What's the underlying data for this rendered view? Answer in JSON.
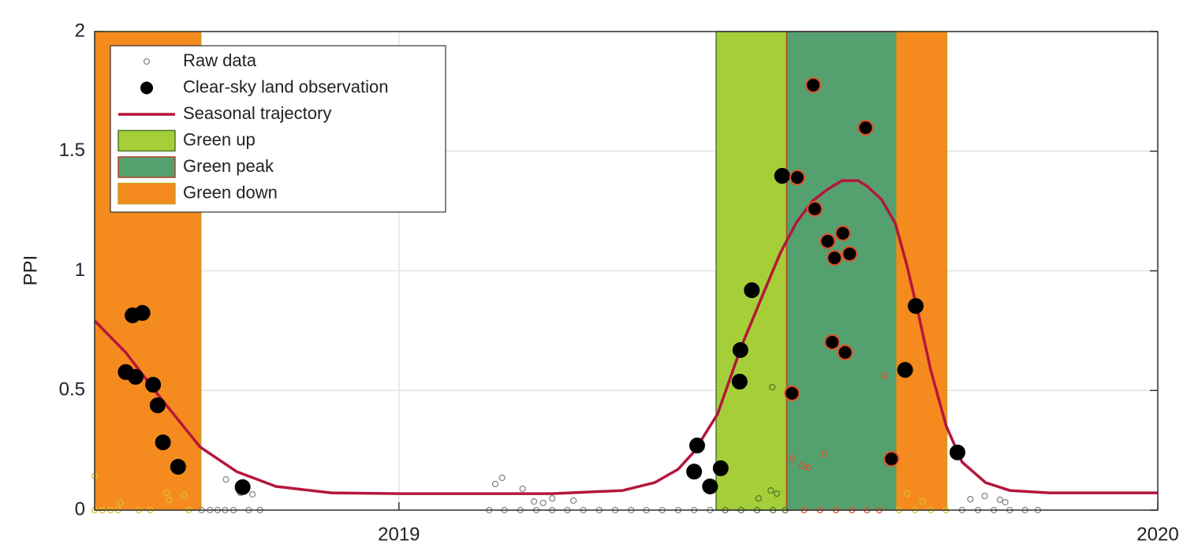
{
  "chart_data": {
    "type": "scatter",
    "ylabel": "PPI",
    "xlim": [
      2018.599,
      2020
    ],
    "xticks": [
      2019,
      2020
    ],
    "ylim": [
      0,
      2
    ],
    "yticks": [
      0,
      0.5,
      1,
      1.5,
      2
    ],
    "grid": true,
    "legend": "upper left",
    "phases": [
      {
        "name": "Green up",
        "color": "#a6ce39",
        "spans": [
          [
            2019.418,
            2019.511
          ]
        ]
      },
      {
        "name": "Green peak",
        "color": "#55a06f",
        "spans": [
          [
            2019.511,
            2019.656
          ]
        ]
      },
      {
        "name": "Green down",
        "color": "#f58a1f",
        "spans": [
          [
            2018.599,
            2018.739
          ],
          [
            2019.656,
            2019.722
          ]
        ]
      }
    ],
    "series": [
      {
        "name": "Raw data",
        "type": "scatter",
        "marker": "open",
        "color": "#888888",
        "x": [
          2018.599,
          2018.609,
          2018.62,
          2018.63,
          2018.657,
          2018.672,
          2018.723,
          2018.74,
          2018.751,
          2018.761,
          2018.771,
          2018.782,
          2018.802,
          2018.817,
          2019.119,
          2019.139,
          2019.16,
          2019.181,
          2019.202,
          2019.222,
          2019.243,
          2019.264,
          2019.285,
          2019.306,
          2019.326,
          2019.347,
          2019.368,
          2019.389,
          2019.41,
          2019.43,
          2019.451,
          2019.472,
          2019.493,
          2019.509,
          2019.534,
          2019.555,
          2019.576,
          2019.597,
          2019.617,
          2019.633,
          2019.659,
          2019.68,
          2019.701,
          2019.721,
          2019.742,
          2019.763,
          2019.784,
          2019.805,
          2019.825,
          2019.842,
          2018.599,
          2018.633,
          2018.694,
          2018.697,
          2018.717,
          2018.772,
          2018.791,
          2018.807,
          2019.127,
          2019.136,
          2019.163,
          2019.178,
          2019.19,
          2019.202,
          2019.23,
          2019.474,
          2019.492,
          2019.49,
          2019.498,
          2019.519,
          2019.531,
          2019.54,
          2019.561,
          2019.64,
          2019.67,
          2019.69,
          2019.753,
          2019.772,
          2019.792,
          2019.799
        ],
        "values": [
          0,
          0,
          0,
          0,
          0,
          0,
          0,
          0,
          0,
          0,
          0,
          0,
          0,
          0,
          0,
          0,
          0,
          0,
          0,
          0,
          0,
          0,
          0,
          0,
          0,
          0,
          0,
          0,
          0,
          0,
          0,
          0,
          0,
          0,
          0,
          0,
          0,
          0,
          0,
          0,
          0,
          0,
          0,
          0,
          0,
          0,
          0,
          0,
          0,
          0,
          0.142,
          0.03,
          0.072,
          0.043,
          0.063,
          0.128,
          0.072,
          0.066,
          0.109,
          0.135,
          0.089,
          0.036,
          0.03,
          0.049,
          0.04,
          0.049,
          0.514,
          0.082,
          0.069,
          0.217,
          0.185,
          0.178,
          0.234,
          0.563,
          0.069,
          0.036,
          0.046,
          0.059,
          0.043,
          0.033
        ]
      },
      {
        "name": "Clear-sky land observation",
        "type": "scatter",
        "marker": "filled",
        "color": "#000000",
        "x": [
          2018.64,
          2018.649,
          2018.662,
          2018.653,
          2018.676,
          2018.682,
          2018.689,
          2018.709,
          2018.794,
          2019.389,
          2019.393,
          2019.41,
          2019.424,
          2019.449,
          2019.45,
          2019.465,
          2019.505,
          2019.518,
          2019.525,
          2019.546,
          2019.548,
          2019.565,
          2019.585,
          2019.574,
          2019.594,
          2019.571,
          2019.588,
          2019.615,
          2019.649,
          2019.667,
          2019.681,
          2019.736
        ],
        "values": [
          0.577,
          0.814,
          0.824,
          0.557,
          0.524,
          0.438,
          0.283,
          0.181,
          0.096,
          0.161,
          0.27,
          0.099,
          0.175,
          0.537,
          0.669,
          0.919,
          1.397,
          0.488,
          1.39,
          1.776,
          1.259,
          1.124,
          1.157,
          1.054,
          1.071,
          0.702,
          0.659,
          1.598,
          0.214,
          0.586,
          0.853,
          0.241
        ]
      },
      {
        "name": "Seasonal trajectory",
        "type": "line",
        "color": "#b5163b",
        "x": [
          2018.599,
          2018.64,
          2018.682,
          2018.738,
          2018.786,
          2018.838,
          2018.911,
          2019.0,
          2019.202,
          2019.295,
          2019.337,
          2019.368,
          2019.389,
          2019.42,
          2019.451,
          2019.482,
          2019.503,
          2019.524,
          2019.545,
          2019.565,
          2019.584,
          2019.605,
          2019.617,
          2019.636,
          2019.654,
          2019.669,
          2019.685,
          2019.701,
          2019.721,
          2019.742,
          2019.773,
          2019.805,
          2019.857,
          2020.0
        ],
        "values": [
          0.791,
          0.659,
          0.484,
          0.264,
          0.161,
          0.099,
          0.072,
          0.069,
          0.069,
          0.082,
          0.115,
          0.171,
          0.244,
          0.402,
          0.682,
          0.919,
          1.077,
          1.203,
          1.292,
          1.341,
          1.377,
          1.377,
          1.354,
          1.298,
          1.199,
          1.028,
          0.814,
          0.583,
          0.353,
          0.201,
          0.115,
          0.082,
          0.072,
          0.072
        ]
      }
    ]
  }
}
